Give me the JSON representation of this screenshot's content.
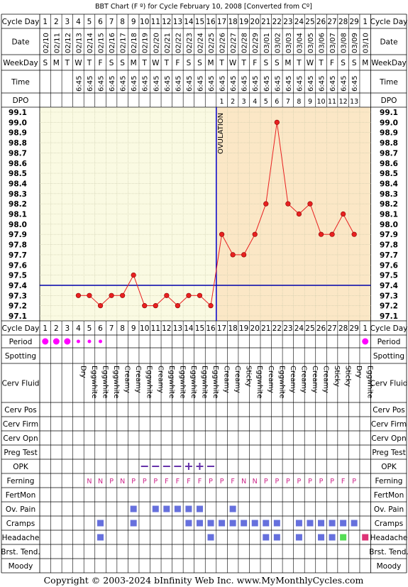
{
  "title": "BBT Chart (F º) for Cycle February 10, 2008  [Converted from Cº]",
  "footer": "Copyright © 2003-2024 bInfinity Web Inc.    www.MyMonthlyCycles.com",
  "labels": {
    "cycle_day": "Cycle Day",
    "date": "Date",
    "weekday": "WeekDay",
    "time": "Time",
    "dpo": "DPO",
    "period": "Period",
    "spotting": "Spotting",
    "cerv_fluid": "Cerv Fluid",
    "cerv_pos": "Cerv Pos",
    "cerv_firm": "Cerv Firm",
    "cerv_opn": "Cerv Opn",
    "preg_test": "Preg Test",
    "opk": "OPK",
    "ferning": "Ferning",
    "fertmon": "FertMon",
    "ov_pain": "Ov. Pain",
    "cramps": "Cramps",
    "headache": "Headache",
    "brst_tend": "Brst. Tend.",
    "moody": "Moody"
  },
  "colors": {
    "chart_bg_pre": "#fafae2",
    "chart_bg_post": "#fbe7c6",
    "line": "#e82020",
    "coverline": "#0000aa",
    "ovulation": "#0000cc",
    "period": "#ff00ff",
    "marker": "#6670dd",
    "ferning": "#cc2288",
    "opk": "#6633aa",
    "headache_green": "#55dd55",
    "headache_pink": "#dd3377"
  },
  "chart_data": {
    "type": "line",
    "y_ticks": [
      "99.1",
      "99.0",
      "98.9",
      "98.8",
      "98.7",
      "98.6",
      "98.5",
      "98.4",
      "98.3",
      "98.2",
      "98.1",
      "98.0",
      "97.9",
      "97.8",
      "97.7",
      "97.6",
      "97.5",
      "97.4",
      "97.3",
      "97.2",
      "97.1"
    ],
    "ylim": [
      97.1,
      99.1
    ],
    "cycle_days": [
      "1",
      "2",
      "3",
      "4",
      "5",
      "6",
      "7",
      "8",
      "9",
      "10",
      "11",
      "12",
      "13",
      "14",
      "15",
      "16",
      "17",
      "18",
      "19",
      "20",
      "21",
      "22",
      "23",
      "24",
      "25",
      "26",
      "27",
      "28",
      "29",
      "1"
    ],
    "dates": [
      "02/10",
      "02/11",
      "02/12",
      "02/13",
      "02/14",
      "02/15",
      "02/16",
      "02/17",
      "02/18",
      "02/19",
      "02/20",
      "02/21",
      "02/22",
      "02/23",
      "02/24",
      "02/25",
      "02/26",
      "02/27",
      "02/28",
      "02/29",
      "03/01",
      "03/02",
      "03/03",
      "03/04",
      "03/05",
      "03/06",
      "03/07",
      "03/08",
      "03/09",
      "03/10"
    ],
    "weekdays": [
      "S",
      "M",
      "T",
      "W",
      "T",
      "F",
      "S",
      "S",
      "M",
      "T",
      "W",
      "T",
      "F",
      "S",
      "S",
      "M",
      "T",
      "W",
      "T",
      "F",
      "S",
      "S",
      "M",
      "T",
      "W",
      "T",
      "F",
      "S",
      "S",
      "M"
    ],
    "times": [
      "",
      "",
      "",
      "6:45",
      "6:45",
      "6:45",
      "6:45",
      "6:45",
      "6:45",
      "6:45",
      "6:45",
      "6:45",
      "6:45",
      "6:45",
      "6:45",
      "6:45",
      "6:45",
      "6:45",
      "6:45",
      "6:45",
      "6:45",
      "6:45",
      "6:45",
      "6:45",
      "6:45",
      "6:45",
      "6:45",
      "6:45",
      "6:45",
      ""
    ],
    "dpo": [
      "",
      "",
      "",
      "",
      "",
      "",
      "",
      "",
      "",
      "",
      "",
      "",
      "",
      "",
      "",
      "",
      "1",
      "2",
      "3",
      "4",
      "5",
      "6",
      "7",
      "8",
      "9",
      "10",
      "11",
      "12",
      "13",
      ""
    ],
    "temps": [
      null,
      null,
      null,
      97.3,
      97.3,
      97.2,
      97.3,
      97.3,
      97.5,
      97.2,
      97.2,
      97.3,
      97.2,
      97.3,
      97.3,
      97.2,
      97.9,
      97.7,
      97.7,
      97.9,
      98.2,
      99.0,
      98.2,
      98.1,
      98.2,
      97.9,
      97.9,
      98.1,
      97.9,
      null
    ],
    "coverline": 97.4,
    "ovulation_day_index": 15,
    "ovulation_label": "OVULATION",
    "period": [
      "heavy",
      "heavy",
      "heavy",
      "light",
      "light",
      "light",
      "",
      "",
      "",
      "",
      "",
      "",
      "",
      "",
      "",
      "",
      "",
      "",
      "",
      "",
      "",
      "",
      "",
      "",
      "",
      "",
      "",
      "",
      "",
      "heavy"
    ],
    "cerv_fluid": [
      "",
      "",
      "",
      "Dry",
      "Eggwhite",
      "Eggwhite",
      "Eggwhite",
      "Creamy",
      "Creamy",
      "Eggwhite",
      "Creamy",
      "Eggwhite",
      "Eggwhite",
      "Eggwhite",
      "Eggwhite",
      "Eggwhite",
      "Creamy",
      "Creamy",
      "Sticky",
      "Eggwhite",
      "Creamy",
      "Eggwhite",
      "Creamy",
      "Creamy",
      "Creamy",
      "Creamy",
      "Sticky",
      "Sticky",
      "Dry",
      "Eggwhite"
    ],
    "opk": [
      "",
      "",
      "",
      "",
      "",
      "",
      "",
      "",
      "",
      "minus",
      "minus",
      "minus",
      "minus",
      "plus",
      "plus",
      "minus",
      "",
      "",
      "",
      "",
      "",
      "",
      "",
      "",
      "",
      "",
      "",
      "",
      "",
      ""
    ],
    "ferning": [
      "",
      "",
      "",
      "",
      "N",
      "N",
      "P",
      "N",
      "P",
      "P",
      "P",
      "F",
      "F",
      "F",
      "F",
      "P",
      "P",
      "F",
      "N",
      "N",
      "P",
      "P",
      "P",
      "P",
      "P",
      "P",
      "P",
      "F",
      "P",
      ""
    ],
    "ov_pain": [
      0,
      0,
      0,
      0,
      0,
      0,
      0,
      0,
      1,
      0,
      1,
      1,
      1,
      1,
      1,
      0,
      0,
      1,
      0,
      0,
      0,
      0,
      0,
      0,
      0,
      0,
      0,
      0,
      0,
      0
    ],
    "cramps": [
      0,
      0,
      0,
      0,
      0,
      1,
      0,
      0,
      1,
      0,
      0,
      0,
      0,
      1,
      1,
      1,
      1,
      1,
      1,
      1,
      1,
      1,
      0,
      1,
      1,
      1,
      1,
      1,
      1,
      0
    ],
    "headache": [
      "",
      "",
      "",
      "",
      "",
      "1",
      "",
      "",
      "",
      "",
      "",
      "",
      "",
      "",
      "",
      "1",
      "",
      "",
      "",
      "",
      "1",
      "1",
      "",
      "1",
      "",
      "1",
      "1",
      "green",
      "",
      ""
    ]
  }
}
